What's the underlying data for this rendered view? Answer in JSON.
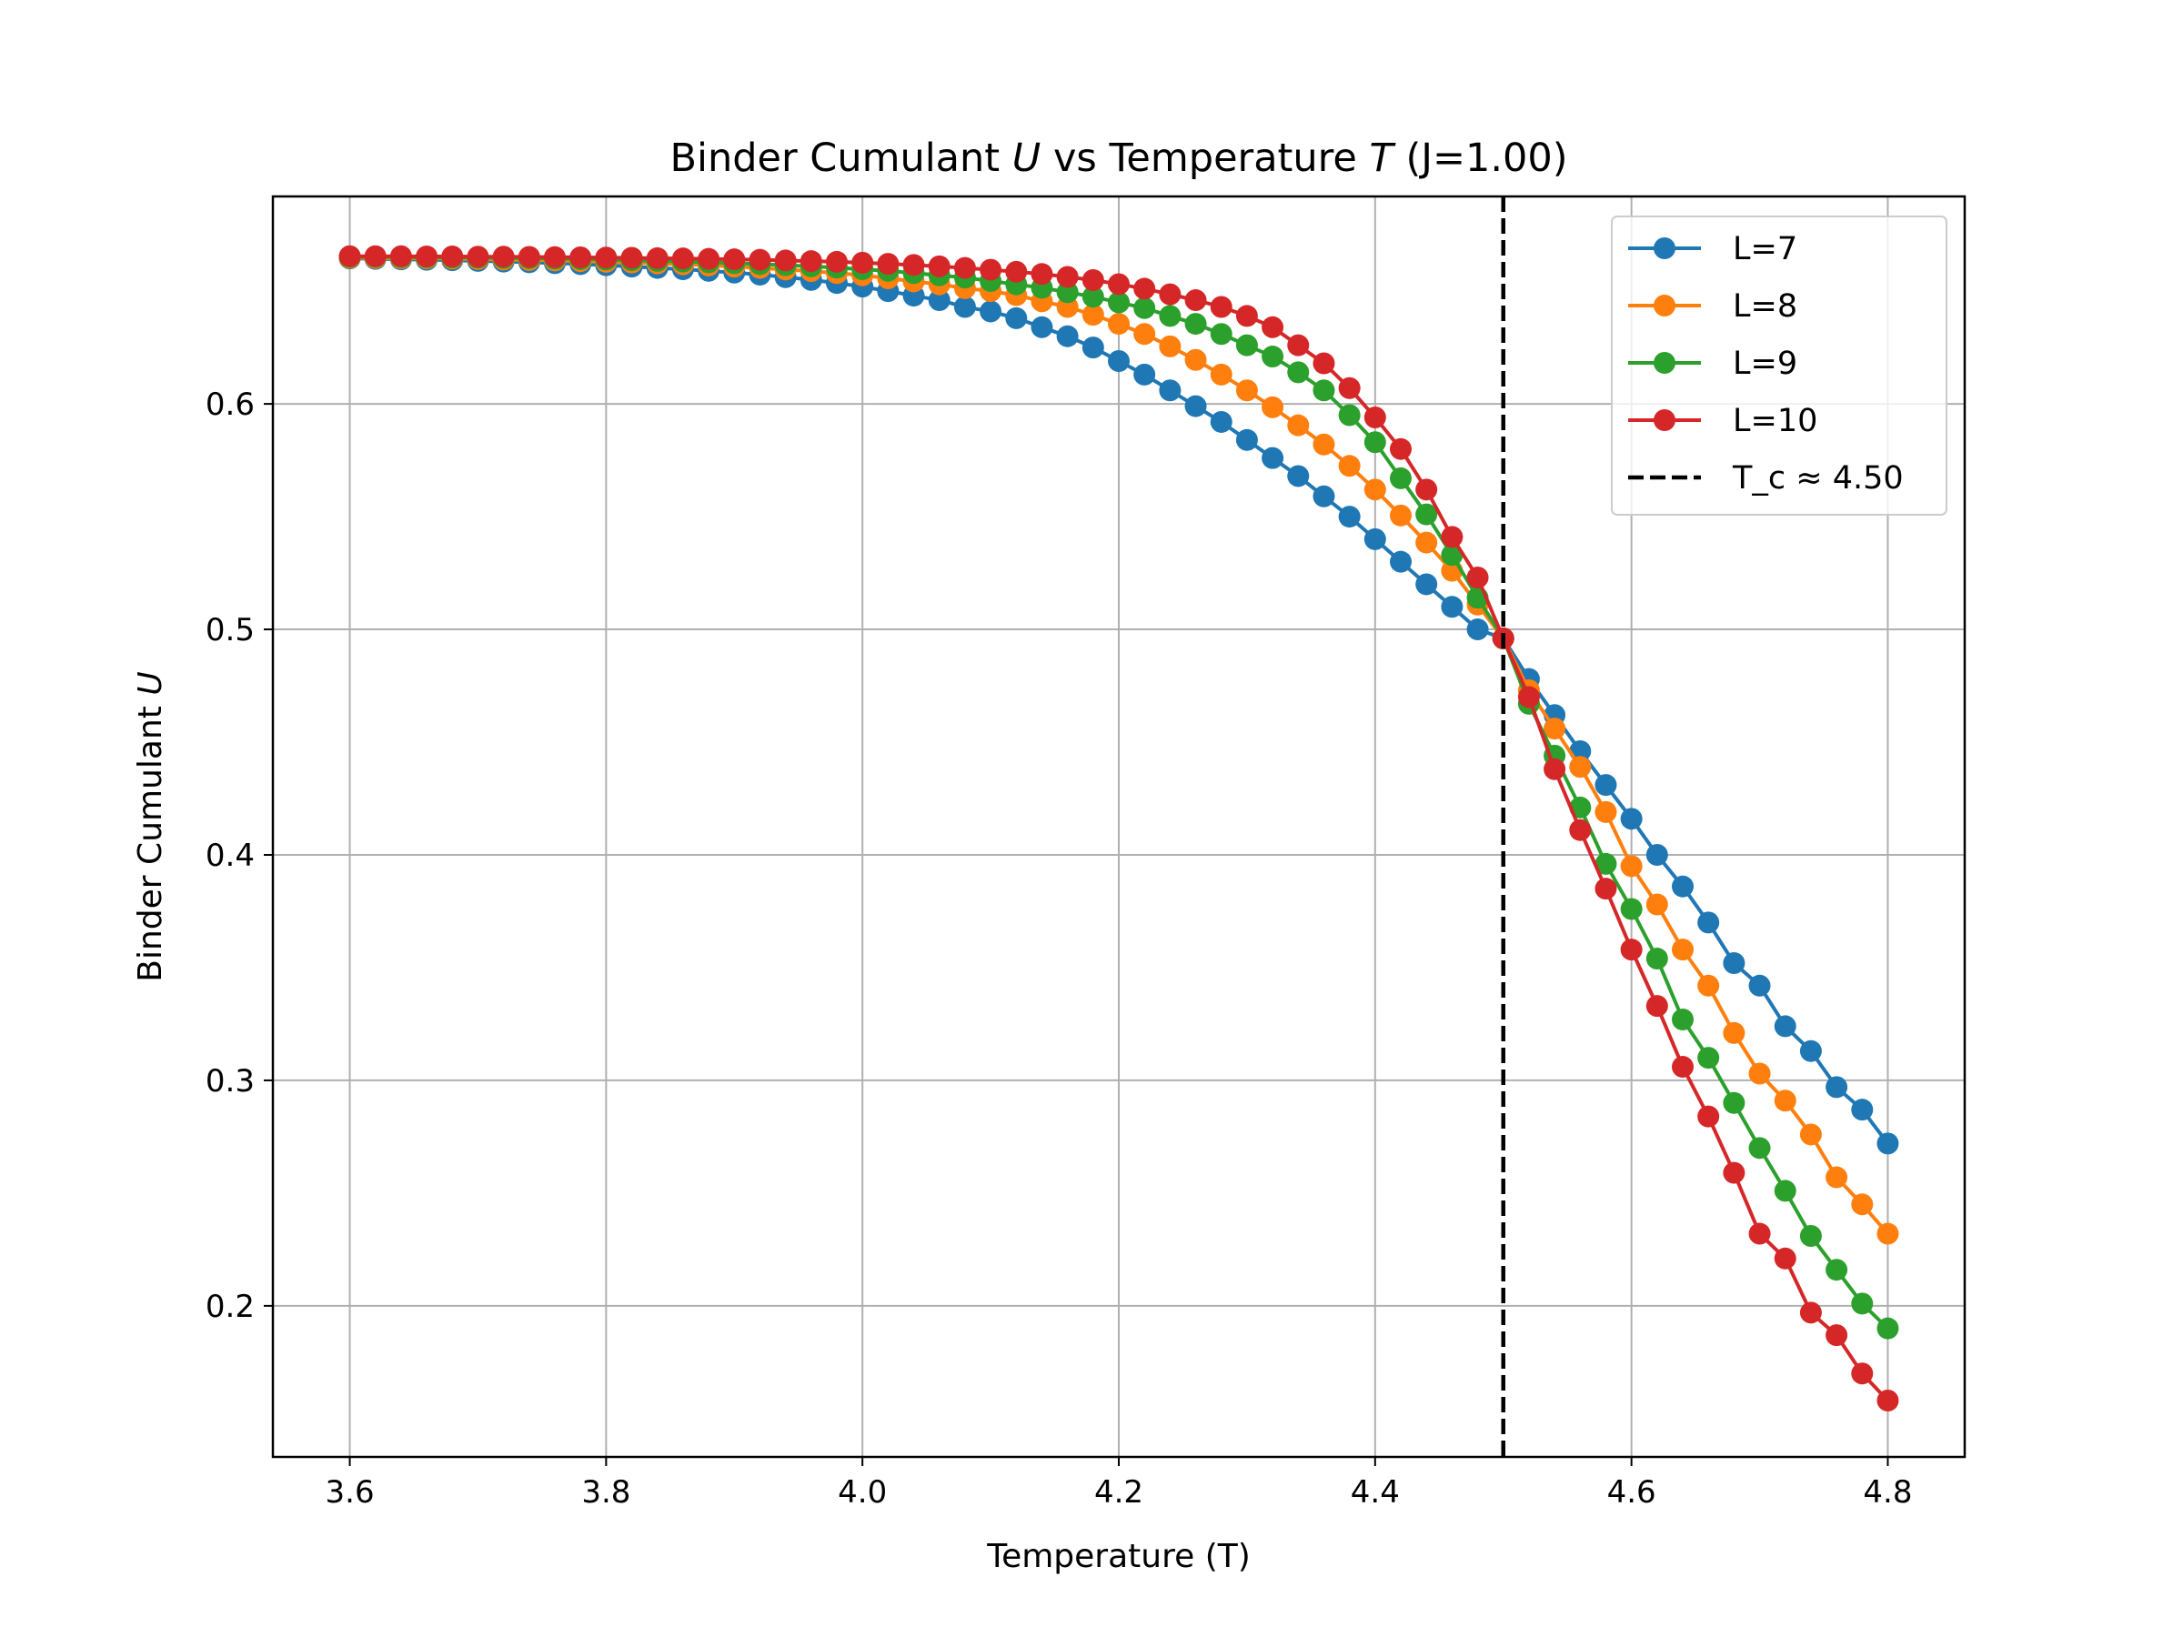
{
  "chart_data": {
    "type": "line",
    "title": {
      "prefix": "Binder Cumulant ",
      "var1": "U",
      "middle": " vs Temperature ",
      "var2": "T",
      "suffix": " (J=1.00)"
    },
    "xlabel": "Temperature (T)",
    "ylabel": {
      "prefix": "Binder Cumulant ",
      "var": "U"
    },
    "xlim": [
      3.54,
      4.86
    ],
    "ylim": [
      0.133,
      0.692
    ],
    "x_ticks": [
      3.6,
      3.8,
      4.0,
      4.2,
      4.4,
      4.6,
      4.8
    ],
    "x_tick_labels": [
      "3.6",
      "3.8",
      "4.0",
      "4.2",
      "4.4",
      "4.6",
      "4.8"
    ],
    "y_ticks": [
      0.2,
      0.3,
      0.4,
      0.5,
      0.6
    ],
    "y_tick_labels": [
      "0.2",
      "0.3",
      "0.4",
      "0.5",
      "0.6"
    ],
    "grid": true,
    "legend_position": "top-right",
    "x": [
      3.6,
      3.62,
      3.64,
      3.66,
      3.68,
      3.7,
      3.72,
      3.74,
      3.76,
      3.78,
      3.8,
      3.82,
      3.84,
      3.86,
      3.88,
      3.9,
      3.92,
      3.94,
      3.96,
      3.98,
      4.0,
      4.02,
      4.04,
      4.06,
      4.08,
      4.1,
      4.12,
      4.14,
      4.16,
      4.18,
      4.2,
      4.22,
      4.24,
      4.26,
      4.28,
      4.3,
      4.32,
      4.34,
      4.36,
      4.38,
      4.4,
      4.42,
      4.44,
      4.46,
      4.48,
      4.5,
      4.52,
      4.54,
      4.56,
      4.58,
      4.6,
      4.62,
      4.64,
      4.66,
      4.68,
      4.7,
      4.72,
      4.74,
      4.76,
      4.78,
      4.8
    ],
    "series": [
      {
        "name": "L=7",
        "color": "#1f77b4",
        "values": [
          0.6645,
          0.6643,
          0.6641,
          0.6639,
          0.6637,
          0.6634,
          0.6631,
          0.6628,
          0.6624,
          0.662,
          0.6615,
          0.6609,
          0.6603,
          0.6597,
          0.659,
          0.6582,
          0.6573,
          0.6562,
          0.655,
          0.6536,
          0.652,
          0.65,
          0.648,
          0.646,
          0.643,
          0.641,
          0.638,
          0.634,
          0.63,
          0.625,
          0.619,
          0.613,
          0.606,
          0.599,
          0.592,
          0.584,
          0.576,
          0.568,
          0.559,
          0.55,
          0.54,
          0.53,
          0.52,
          0.51,
          0.5,
          0.496,
          0.478,
          0.462,
          0.446,
          0.431,
          0.416,
          0.4,
          0.386,
          0.37,
          0.352,
          0.342,
          0.324,
          0.313,
          0.297,
          0.287,
          0.272
        ]
      },
      {
        "name": "L=8",
        "color": "#ff7f0e",
        "values": [
          0.6648,
          0.6647,
          0.6646,
          0.6645,
          0.6644,
          0.6642,
          0.664,
          0.6638,
          0.6636,
          0.6633,
          0.663,
          0.6627,
          0.6623,
          0.6619,
          0.6614,
          0.6609,
          0.6603,
          0.6596,
          0.6589,
          0.658,
          0.657,
          0.6557,
          0.6543,
          0.653,
          0.6513,
          0.65,
          0.6482,
          0.6455,
          0.643,
          0.6395,
          0.6355,
          0.631,
          0.6255,
          0.6195,
          0.613,
          0.606,
          0.5985,
          0.5905,
          0.582,
          0.5725,
          0.562,
          0.5505,
          0.5385,
          0.526,
          0.511,
          0.496,
          0.473,
          0.456,
          0.439,
          0.419,
          0.395,
          0.378,
          0.358,
          0.342,
          0.321,
          0.303,
          0.291,
          0.276,
          0.257,
          0.245,
          0.232
        ]
      },
      {
        "name": "L=9",
        "color": "#2ca02c",
        "values": [
          0.6652,
          0.6652,
          0.6651,
          0.665,
          0.6649,
          0.6648,
          0.6647,
          0.6646,
          0.6644,
          0.6642,
          0.664,
          0.6637,
          0.6634,
          0.6631,
          0.6628,
          0.6624,
          0.662,
          0.6615,
          0.661,
          0.6604,
          0.6597,
          0.659,
          0.658,
          0.657,
          0.656,
          0.6545,
          0.653,
          0.6515,
          0.6495,
          0.6475,
          0.645,
          0.6425,
          0.639,
          0.6355,
          0.631,
          0.626,
          0.621,
          0.614,
          0.606,
          0.595,
          0.583,
          0.567,
          0.551,
          0.533,
          0.514,
          0.496,
          0.467,
          0.444,
          0.421,
          0.396,
          0.376,
          0.354,
          0.327,
          0.31,
          0.29,
          0.27,
          0.251,
          0.231,
          0.216,
          0.201,
          0.19
        ]
      },
      {
        "name": "L=10",
        "color": "#d62728",
        "values": [
          0.6655,
          0.6655,
          0.6655,
          0.6654,
          0.6654,
          0.6653,
          0.6653,
          0.6652,
          0.6651,
          0.665,
          0.6649,
          0.6648,
          0.6646,
          0.6645,
          0.6643,
          0.6641,
          0.6639,
          0.6636,
          0.6633,
          0.663,
          0.6626,
          0.6621,
          0.6616,
          0.661,
          0.6603,
          0.6595,
          0.6586,
          0.6576,
          0.6563,
          0.6549,
          0.6531,
          0.6511,
          0.6486,
          0.646,
          0.643,
          0.639,
          0.634,
          0.626,
          0.618,
          0.607,
          0.594,
          0.58,
          0.562,
          0.541,
          0.523,
          0.496,
          0.47,
          0.438,
          0.411,
          0.385,
          0.358,
          0.333,
          0.306,
          0.284,
          0.259,
          0.232,
          0.221,
          0.197,
          0.187,
          0.17,
          0.158
        ]
      }
    ],
    "annotations": [
      {
        "type": "vline",
        "x": 4.5,
        "label": "T_c ≈ 4.50",
        "color": "#000000",
        "style": "dashed"
      }
    ]
  }
}
